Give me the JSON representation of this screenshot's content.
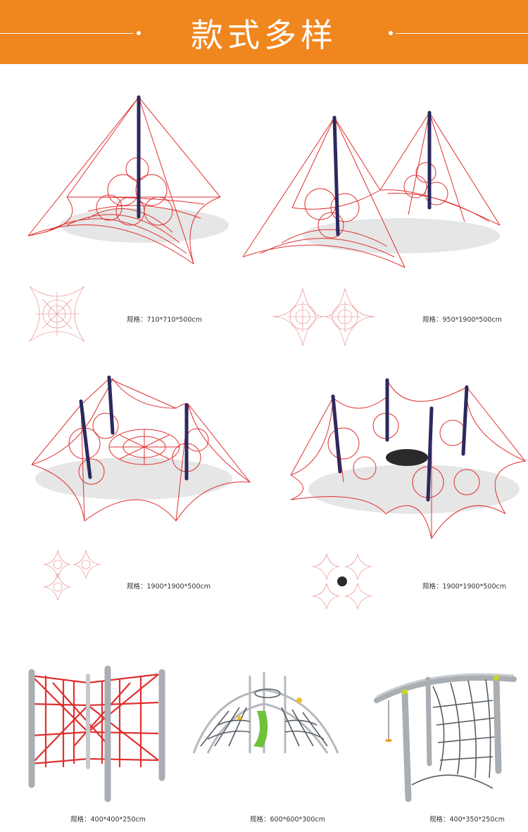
{
  "banner": {
    "title": "款式多样",
    "color": "#f0861e"
  },
  "products": [
    {
      "name": "single-tower-net",
      "spec": "规格：710*710*500cm"
    },
    {
      "name": "double-tower-net",
      "spec": "规格：950*1900*500cm"
    },
    {
      "name": "triple-tower-net",
      "spec": "规格：1900*1900*500cm"
    },
    {
      "name": "quad-tower-net-with-disc",
      "spec": "规格：1900*1900*500cm"
    },
    {
      "name": "red-rope-cube-frame",
      "spec": "规格：400*400*250cm"
    },
    {
      "name": "dome-climber-with-slide",
      "spec": "规格：600*600*300cm"
    },
    {
      "name": "arched-rope-climber",
      "spec": "规格：400*350*250cm"
    }
  ]
}
